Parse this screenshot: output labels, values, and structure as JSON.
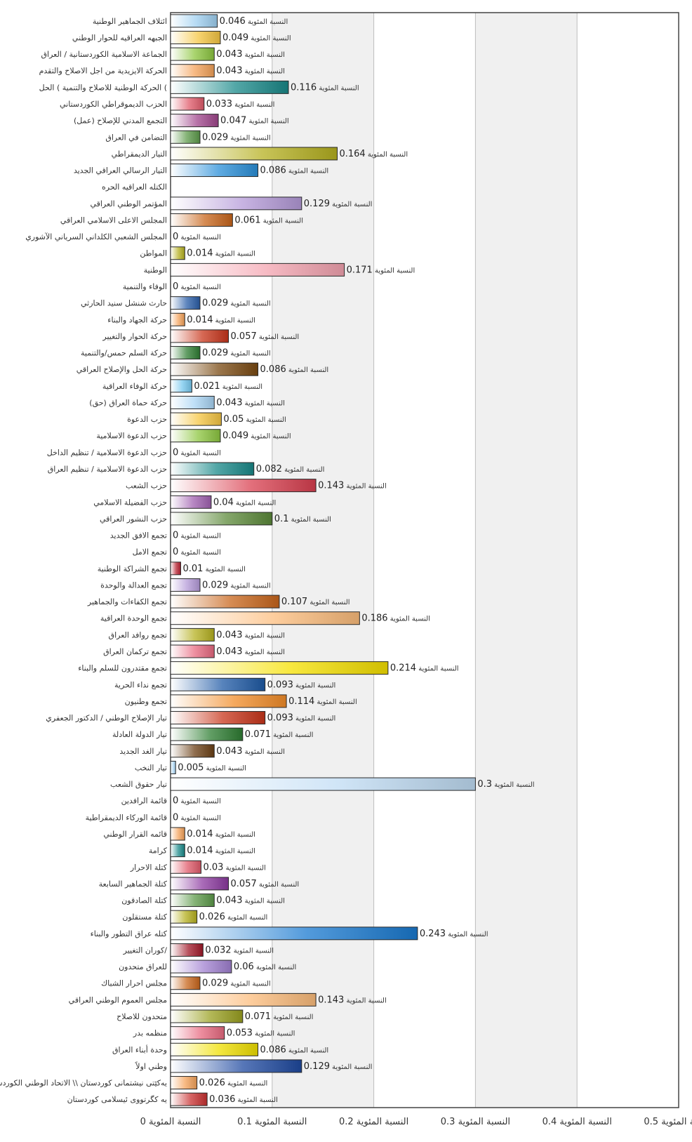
{
  "chart_data": {
    "type": "bar",
    "orientation": "horizontal",
    "value_suffix": "النسبة المئوية",
    "xlim": [
      0,
      0.5
    ],
    "xticks": [
      0,
      0.1,
      0.2,
      0.3,
      0.4,
      0.5
    ],
    "grid": true,
    "legend": "none",
    "categories": [
      "ائتلاف الجماهير الوطنية",
      "الجبهه العراقيه للحوار الوطني",
      "الجماعة الاسلامية الكوردستانية / العراق",
      "الحركة الايزيدية من اجل الاصلاح والتقدم",
      "الحركة الوطنية للاصلاح والتنمية ) الحل (",
      "الحزب الديموقراطي الكوردستاني",
      "التجمع المدني للإصلاح (عمل)",
      "التضامن في العراق",
      "التيار الديمقراطي",
      "التيار الرسالي العراقي الجديد",
      "الكتله العراقيه الحره",
      "المؤتمر الوطني العراقي",
      "المجلس الاعلى الاسلامي العراقي",
      "المجلس الشعبي الكلداني السرياني الآشوري",
      "المواطن",
      "الوطنية",
      "الوفاء والتنمية",
      "حارث شنشل سنيد الحارثي",
      "حركة الجهاد والبناء",
      "حركة الحوار والتغيير",
      "حركة السلم حمس/والتنمية",
      "حركة الحل والإصلاح العراقي",
      "حركة الوفاء العراقية",
      "حركة حماة العراق (حق)",
      "حزب الدعوة",
      "حزب الدعوة الاسلامية",
      "حزب الدعوة الاسلامية / تنظيم الداخل",
      "حزب الدعوة الاسلامية / تنظيم العراق",
      "حزب الشعب",
      "حزب الفضيلة الاسلامي",
      "حزب النشور العراقي",
      "تجمع الافق الجديد",
      "تجمع الامل",
      "تجمع الشراكة الوطنية",
      "تجمع العدالة والوحدة",
      "تجمع الكفاءات والجماهير",
      "تجمع الوحدة العراقية",
      "تجمع روافد العراق",
      "تجمع تركمان العراق",
      "تجمع مقتدرون للسلم والبناء",
      "تجمع نداء الحرية",
      "تجمع وطنيون",
      "تيار الإصلاح الوطني / الدكتور الجعفري",
      "تيار الدولة العادلة",
      "تيار الغد الجديد",
      "تيار النخب",
      "تيار حقوق الشعب",
      "قائمة الرافدين",
      "قائمة الوركاء الديمقراطية",
      "قائمه القرار الوطني",
      "كرامة",
      "كتلة الاحرار",
      "كتلة الجماهير السابعة",
      "كتلة الصادقون",
      "كتلة مستقلون",
      "كتله عراق التطور والبناء",
      "كوران التغيير/",
      "للعراق متحدون",
      "مجلس احرار الشباك",
      "مجلس العموم الوطني العراقي",
      "متحدون للاصلاح",
      "منظمه بدر",
      "وحدة أبناء العراق",
      "وطني اولاً",
      "يەکێتی نیشتمانی کوردستان \\\\ الاتحاد الوطني الكوردستاني",
      "يه كگرتووى ئيسلامى كوردستان"
    ],
    "values": [
      0.046,
      0.049,
      0.043,
      0.043,
      0.116,
      0.033,
      0.047,
      0.029,
      0.164,
      0.086,
      null,
      0.129,
      0.061,
      0,
      0.014,
      0.171,
      0,
      0.029,
      0.014,
      0.057,
      0.029,
      0.086,
      0.021,
      0.043,
      0.05,
      0.049,
      0,
      0.082,
      0.143,
      0.04,
      0.1,
      0,
      0,
      0.01,
      0.029,
      0.107,
      0.186,
      0.043,
      0.043,
      0.214,
      0.093,
      0.114,
      0.093,
      0.071,
      0.043,
      0.005,
      0.3,
      0,
      0,
      0.014,
      0.014,
      0.03,
      0.057,
      0.043,
      0.026,
      0.243,
      0.032,
      0.06,
      0.029,
      0.143,
      0.071,
      0.053,
      0.086,
      0.129,
      0.026,
      0.036
    ],
    "value_labels": [
      "0.046",
      "0.049",
      "0.043",
      "0.043",
      "0.116",
      "0.033",
      "0.047",
      "0.029",
      "0.164",
      "0.086",
      "",
      "0.129",
      "0.061",
      "0",
      "0.014",
      "0.171",
      "0",
      "0.029",
      "0.014",
      "0.057",
      "0.029",
      "0.086",
      "0.021",
      "0.043",
      "0.05",
      "0.049",
      "0",
      "0.082",
      "0.143",
      "0.04",
      "0.1",
      "0",
      "0",
      "0.01",
      "0.029",
      "0.107",
      "0.186",
      "0.043",
      "0.043",
      "0.214",
      "0.093",
      "0.114",
      "0.093",
      "0.071",
      "0.043",
      "0.005",
      "0.3",
      "0",
      "0",
      "0.014",
      "0.014",
      "0.03",
      "0.057",
      "0.043",
      "0.026",
      "0.243",
      "0.032",
      "0.06",
      "0.029",
      "0.143",
      "0.071",
      "0.053",
      "0.086",
      "0.129",
      "0.026",
      "0.036"
    ],
    "colors": [
      "#9ecff0",
      "#f5c542",
      "#8cc63f",
      "#f4a259",
      "#1a8a8a",
      "#e05a6a",
      "#a0468c",
      "#5c9a4a",
      "#b5b020",
      "#2a8fd8",
      "#b49ad8",
      "#b49ad8",
      "#c8651b",
      "#b49ad8",
      "#b5b020",
      "#f4a4b0",
      "#b49ad8",
      "#2a5ea8",
      "#f4a259",
      "#c8351b",
      "#2e7d32",
      "#7a4a12",
      "#74c7ee",
      "#a8d4f4",
      "#f5c542",
      "#8cc63f",
      "#1a8a8a",
      "#1a8a8a",
      "#d94050",
      "#a060b0",
      "#5c8a3a",
      "#b49ad8",
      "#b49ad8",
      "#b82030",
      "#b49ad8",
      "#c8651b",
      "#fcbc7c",
      "#b5b020",
      "#e86a80",
      "#f5e000",
      "#1f5aa6",
      "#f28c28",
      "#c8351b",
      "#2e7d32",
      "#6b3f14",
      "#a8d4f4",
      "#c0dcf4",
      "#b49ad8",
      "#b49ad8",
      "#f4a259",
      "#1a8a8a",
      "#e05a6a",
      "#8c3aa0",
      "#5c9a4a",
      "#b5b020",
      "#1a7ad0",
      "#a01828",
      "#a080d0",
      "#c8651b",
      "#fcbc7c",
      "#9aa020",
      "#e86a80",
      "#f0e000",
      "#1f4aa0",
      "#f4a259",
      "#c83030"
    ]
  }
}
